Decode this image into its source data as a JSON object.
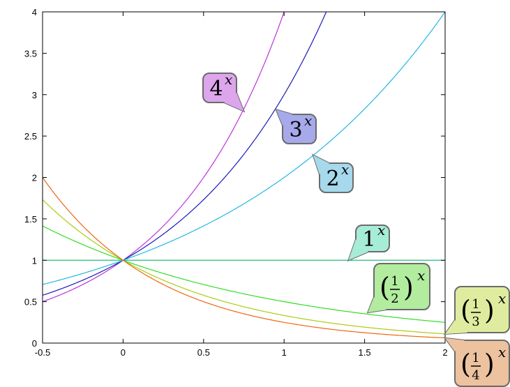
{
  "chart_data": {
    "type": "line",
    "title": "",
    "xlabel": "",
    "ylabel": "",
    "xlim": [
      -0.5,
      2
    ],
    "ylim": [
      0,
      4
    ],
    "grid": false,
    "x_ticks": [
      "-0.5",
      "0",
      "0.5",
      "1",
      "1.5",
      "2"
    ],
    "y_ticks": [
      "0",
      "0.5",
      "1",
      "1.5",
      "2",
      "2.5",
      "3",
      "3.5",
      "4"
    ],
    "series": [
      {
        "base": 4,
        "color": "#bb33dd"
      },
      {
        "base": 3,
        "color": "#1a1ab8"
      },
      {
        "base": 2,
        "color": "#22b8e0"
      },
      {
        "base": 1,
        "color": "#22bb77"
      },
      {
        "base": 0.5,
        "color": "#33dd22"
      },
      {
        "base": 0.3333,
        "color": "#aacc11"
      },
      {
        "base": 0.25,
        "color": "#ee6611"
      }
    ],
    "labels": [
      {
        "base_text": "4",
        "exp": "x",
        "fill": "#dda6ec",
        "anchor": [
          0.75,
          2.8
        ]
      },
      {
        "base_text": "3",
        "exp": "x",
        "fill": "#a6a9ea",
        "anchor": [
          0.95,
          2.82
        ]
      },
      {
        "base_text": "2",
        "exp": "x",
        "fill": "#a6d9ec",
        "anchor": [
          1.18,
          2.27
        ]
      },
      {
        "base_text": "1",
        "exp": "x",
        "fill": "#a6ecd6",
        "anchor": [
          1.4,
          1.0
        ]
      },
      {
        "fraction": "1/2",
        "num": "1",
        "den": "2",
        "exp": "x",
        "fill": "#b2ec9f",
        "anchor": [
          1.52,
          0.37
        ]
      },
      {
        "fraction": "1/3",
        "num": "1",
        "den": "3",
        "exp": "x",
        "fill": "#dfec9f",
        "anchor": [
          2.0,
          0.11
        ]
      },
      {
        "fraction": "1/4",
        "num": "1",
        "den": "4",
        "exp": "x",
        "fill": "#ecc29f",
        "anchor": [
          2.0,
          0.06
        ]
      }
    ]
  }
}
